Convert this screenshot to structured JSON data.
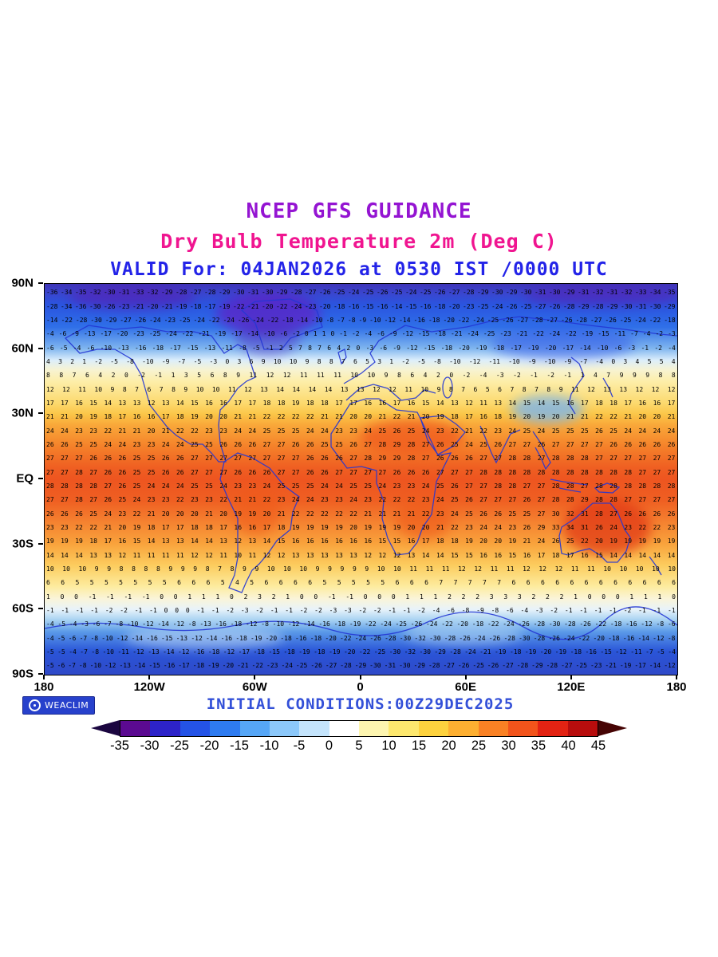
{
  "titles": {
    "line1": "NCEP GFS GUIDANCE",
    "line2": "Dry Bulb Temperature 2m (Deg C)",
    "line3": "VALID For: 04JAN2026 at 0530 IST /0000 UTC"
  },
  "footer": {
    "logo_text": "WEACLIM",
    "initial_conditions": "INITIAL CONDITIONS:00Z29DEC2025"
  },
  "chart_data": {
    "type": "heatmap",
    "title": "NCEP GFS GUIDANCE",
    "subtitle": "Dry Bulb Temperature 2m (Deg C)",
    "valid": "VALID For: 04JAN2026 at 0530 IST /0000 UTC",
    "initial_conditions": "INITIAL CONDITIONS:00Z29DEC2025",
    "units": "Deg C",
    "x_axis": {
      "label_ticks": [
        "180",
        "120W",
        "60W",
        "0",
        "60E",
        "120E",
        "180"
      ],
      "range": [
        -180,
        180
      ]
    },
    "y_axis": {
      "label_ticks": [
        "90N",
        "60N",
        "30N",
        "EQ",
        "30S",
        "60S",
        "90S"
      ],
      "range": [
        90,
        -90
      ]
    },
    "colorbar": {
      "tick_labels": [
        "-35",
        "-30",
        "-25",
        "-20",
        "-15",
        "-10",
        "-5",
        "0",
        "5",
        "10",
        "15",
        "20",
        "25",
        "30",
        "35",
        "40",
        "45"
      ],
      "segment_colors": [
        "#5b0a91",
        "#2d23c9",
        "#2453e6",
        "#2e7bf0",
        "#56a6f6",
        "#8cc8fa",
        "#c4e4fc",
        "#ffffff",
        "#fdf5b0",
        "#fde86e",
        "#fdd23e",
        "#fdaf31",
        "#f98124",
        "#f2541b",
        "#e32313",
        "#b80d0d"
      ],
      "left_arrow_color": "#1b0640",
      "right_arrow_color": "#460404"
    },
    "grid": {
      "description": "2m dry bulb temperature values (Deg C) on plotted grid, rows from 90N (top) to 90S (bottom)",
      "rows": [
        "-36 -34 -35 -32 -30 -31 -33 -32 -29 -28 -27 -28 -29 -30 -31 -30 -29 -28 -27 -26 -25 -24 -25 -26 -25 -24 -25 -26 -27 -28 -29 -30 -29 -30 -31 -30 -29 -31 -32 -31 -32 -33 -34 -35",
        "-28 -34 -36 -30 -26 -23 -21 -20 -21 -19 -18 -17 -19 -22 -21 -20 -22 -24 -23 -20 -18 -16 -15 -16 -14 -15 -16 -18 -20 -23 -25 -24 -26 -25 -27 -26 -28 -29 -28 -29 -30 -31 -30 -29",
        "-14 -22 -28 -30 -29 -27 -26 -24 -23 -25 -24 -22 -24 -26 -24 -22 -18 -14 -10 -8 -7 -8 -9 -10 -12 -14 -16 -18 -20 -22 -24 -25 -26 -27 -28 -27 -26 -28 -27 -26 -25 -24 -22 -18",
        "-4 -6 -9 -13 -17 -20 -23 -25 -24 -22 -21 -19 -17 -14 -10 -6 -2 0 1 1 0 -1 -2 -4 -6 -9 -12 -15 -18 -21 -24 -25 -23 -21 -22 -24 -22 -19 -15 -11 -7 -4 -2 -3",
        "-6 -5 -4 -6 -10 -13 -16 -18 -17 -15 -13 -11 -8 -5 -1 2 5 7 8 7 6 4 2 0 -3 -6 -9 -12 -15 -18 -20 -19 -18 -17 -19 -20 -17 -14 -10 -6 -3 -1 -2 -4",
        "4 3 2 1 -2 -5 -8 -10 -9 -7 -5 -3 0 3 6 9 10 10 9 8 8 7 6 5 3 1 -2 -5 -8 -10 -12 -11 -10 -9 -10 -9 -7 -4 0 3 4 5 5 4",
        "8 8 7 6 4 2 0 -2 -1 1 3 5 6 8 9 11 12 12 11 11 11 10 10 9 8 6 4 2 0 -2 -4 -3 -2 -1 -2 -1 1 4 7 9 9 9 8 8",
        "12 12 11 10 9 8 7 6 7 8 9 10 10 11 12 13 14 14 14 14 13 13 12 12 11 10 9 8 7 6 5 6 7 8 7 8 9 11 12 13 13 12 12 12",
        "17 17 16 15 14 13 13 12 13 14 15 16 16 17 17 18 18 19 18 18 17 17 16 16 17 16 15 14 13 12 11 13 14 15 14 15 16 17 18 18 17 16 16 17",
        "21 21 20 19 18 17 16 16 17 18 19 20 20 21 21 22 22 22 22 21 21 20 20 21 22 21 20 19 18 17 16 18 19 20 19 20 21 21 22 22 21 20 20 21",
        "24 24 23 23 22 21 21 20 21 22 22 23 23 24 24 25 25 25 24 24 23 23 24 25 26 25 24 23 22 21 22 23 24 25 24 25 25 25 26 25 24 24 24 24",
        "26 26 25 25 24 24 23 23 24 24 25 25 26 26 26 27 27 26 26 25 25 26 27 28 29 28 27 26 25 24 25 26 27 27 26 27 27 27 27 26 26 26 26 26",
        "27 27 27 26 26 26 25 25 26 26 27 27 27 27 27 27 27 27 26 26 26 27 28 29 29 28 27 26 26 26 27 27 28 28 27 28 28 28 27 27 27 27 27 27",
        "27 27 28 27 26 26 25 25 26 26 27 27 27 26 26 26 27 27 26 26 27 27 27 27 26 26 26 27 27 27 28 28 28 28 28 28 28 28 28 28 28 27 27 27",
        "28 28 28 28 27 26 25 24 24 24 25 25 24 23 23 24 25 25 25 24 24 25 25 24 23 23 24 25 26 27 27 28 28 27 27 28 28 27 28 28 28 28 28 28",
        "27 27 28 27 26 25 24 23 23 22 23 23 22 21 21 22 23 24 24 23 23 24 23 22 22 22 23 24 25 26 27 27 27 26 27 28 28 29 28 28 27 27 27 27",
        "26 26 26 25 24 23 22 21 20 20 20 21 20 19 19 20 21 22 22 22 22 22 21 21 21 21 22 23 24 25 26 26 25 25 27 30 32 31 28 27 26 26 26 26",
        "23 23 22 22 21 20 19 18 17 17 18 18 17 16 16 17 18 19 19 19 19 20 19 19 19 20 20 21 22 23 24 24 23 26 29 33 34 31 26 24 23 22 22 23",
        "19 19 19 18 17 16 15 14 13 13 14 14 13 12 13 14 15 16 16 16 16 16 16 15 15 16 17 18 18 19 20 20 19 21 24 26 25 22 20 19 19 19 19 19",
        "14 14 14 13 13 12 11 11 11 11 12 12 11 10 11 12 12 13 13 13 13 13 12 12 12 13 14 14 15 15 16 16 15 16 17 18 17 16 15 14 14 14 14 14",
        "10 10 10 9 9 8 8 8 8 9 9 9 8 7 8 9 9 10 10 10 9 9 9 9 9 10 10 11 11 11 12 12 11 11 12 12 12 11 11 10 10 10 10 10",
        "6 6 5 5 5 5 5 5 5 6 6 6 5 4 5 6 6 6 6 5 5 5 5 5 6 6 6 7 7 7 7 7 6 6 6 6 6 6 6 6 6 6 6 6",
        "1 0 0 -1 -1 -1 -1 0 0 1 1 1 0 2 3 2 1 0 0 -1 -1 0 0 0 1 1 1 2 2 2 3 3 3 2 2 2 1 0 0 0 1 1 1 0",
        "-1 -1 -1 -1 -2 -2 -1 -1 0 0 0 -1 -1 -2 -3 -2 -1 -1 -2 -2 -3 -3 -2 -2 -1 -1 -2 -4 -6 -8 -9 -8 -6 -4 -3 -2 -1 -1 -1 -1 -2 -1 -1 -1",
        "-4 -5 -4 -3 -6 -7 -8 -10 -12 -14 -12 -8 -13 -16 -18 -12 -8 -10 -12 -14 -16 -18 -19 -22 -24 -25 -26 -24 -22 -20 -18 -22 -24 -26 -28 -30 -28 -26 -22 -18 -16 -12 -8 -6",
        "-4 -5 -6 -7 -8 -10 -12 -14 -16 -15 -13 -12 -14 -16 -18 -19 -20 -18 -16 -18 -20 -22 -24 -26 -28 -30 -32 -30 -28 -26 -24 -26 -28 -30 -28 -26 -24 -22 -20 -18 -16 -14 -12 -8",
        "-5 -5 -4 -7 -8 -10 -11 -12 -13 -14 -12 -16 -18 -12 -17 -18 -15 -18 -19 -18 -19 -20 -22 -25 -30 -32 -30 -29 -28 -24 -21 -19 -18 -19 -20 -19 -18 -16 -15 -12 -11 -7 -5 -4",
        "-5 -6 -7 -8 -10 -12 -13 -14 -15 -16 -17 -18 -19 -20 -21 -22 -23 -24 -25 -26 -27 -28 -29 -30 -31 -30 -29 -28 -27 -26 -25 -26 -27 -28 -29 -28 -27 -25 -23 -21 -19 -17 -14 -12"
      ]
    }
  }
}
